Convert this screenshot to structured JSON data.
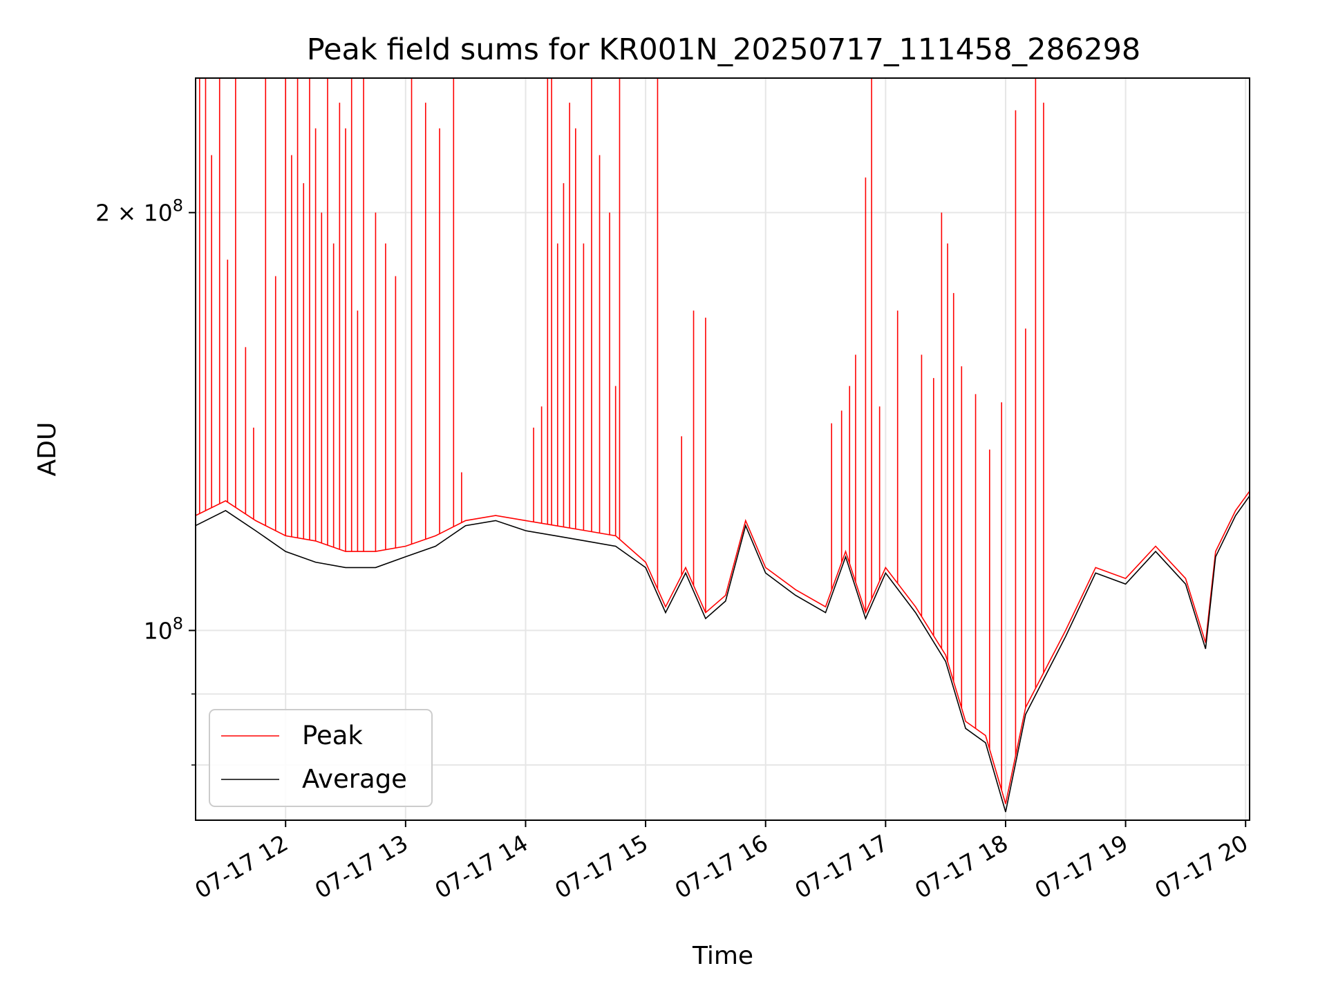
{
  "chart_data": {
    "type": "line",
    "title": "Peak field sums for KR001N_20250717_111458_286298",
    "xlabel": "Time",
    "ylabel": "ADU",
    "yscale": "log",
    "grid": true,
    "legend_position": "lower-left",
    "xlim": [
      "2025-07-17T11:15",
      "2025-07-17T20:02"
    ],
    "ylim": [
      73000000,
      250000000
    ],
    "x_ticks": [
      {
        "t": "2025-07-17T12:00",
        "label": "07-17 12"
      },
      {
        "t": "2025-07-17T13:00",
        "label": "07-17 13"
      },
      {
        "t": "2025-07-17T14:00",
        "label": "07-17 14"
      },
      {
        "t": "2025-07-17T15:00",
        "label": "07-17 15"
      },
      {
        "t": "2025-07-17T16:00",
        "label": "07-17 16"
      },
      {
        "t": "2025-07-17T17:00",
        "label": "07-17 17"
      },
      {
        "t": "2025-07-17T18:00",
        "label": "07-17 18"
      },
      {
        "t": "2025-07-17T19:00",
        "label": "07-17 19"
      },
      {
        "t": "2025-07-17T20:00",
        "label": "07-17 20"
      }
    ],
    "y_major_ticks": [
      {
        "value": 100000000,
        "base": "10",
        "exp": "8"
      },
      {
        "value": 200000000,
        "base": "2 × 10",
        "exp": "8"
      }
    ],
    "y_minor_ticks": [
      80000000,
      90000000
    ],
    "series": [
      {
        "name": "Peak",
        "color": "#ff0000",
        "base": [
          [
            "2025-07-17T11:15",
            121000000
          ],
          [
            "2025-07-17T11:30",
            124000000
          ],
          [
            "2025-07-17T11:45",
            120000000
          ],
          [
            "2025-07-17T12:00",
            117000000
          ],
          [
            "2025-07-17T12:15",
            116000000
          ],
          [
            "2025-07-17T12:30",
            114000000
          ],
          [
            "2025-07-17T12:45",
            114000000
          ],
          [
            "2025-07-17T13:00",
            115000000
          ],
          [
            "2025-07-17T13:15",
            117000000
          ],
          [
            "2025-07-17T13:30",
            120000000
          ],
          [
            "2025-07-17T13:45",
            121000000
          ],
          [
            "2025-07-17T14:00",
            120000000
          ],
          [
            "2025-07-17T14:15",
            119000000
          ],
          [
            "2025-07-17T14:30",
            118000000
          ],
          [
            "2025-07-17T14:45",
            117000000
          ],
          [
            "2025-07-17T15:00",
            112000000
          ],
          [
            "2025-07-17T15:10",
            104000000
          ],
          [
            "2025-07-17T15:20",
            111000000
          ],
          [
            "2025-07-17T15:30",
            103000000
          ],
          [
            "2025-07-17T15:40",
            106000000
          ],
          [
            "2025-07-17T15:50",
            120000000
          ],
          [
            "2025-07-17T16:00",
            111000000
          ],
          [
            "2025-07-17T16:15",
            107000000
          ],
          [
            "2025-07-17T16:30",
            104000000
          ],
          [
            "2025-07-17T16:40",
            114000000
          ],
          [
            "2025-07-17T16:50",
            103000000
          ],
          [
            "2025-07-17T17:00",
            111000000
          ],
          [
            "2025-07-17T17:15",
            104000000
          ],
          [
            "2025-07-17T17:30",
            96000000
          ],
          [
            "2025-07-17T17:40",
            86000000
          ],
          [
            "2025-07-17T17:50",
            84000000
          ],
          [
            "2025-07-17T18:00",
            75000000
          ],
          [
            "2025-07-17T18:10",
            88000000
          ],
          [
            "2025-07-17T18:30",
            100000000
          ],
          [
            "2025-07-17T18:45",
            111000000
          ],
          [
            "2025-07-17T19:00",
            109000000
          ],
          [
            "2025-07-17T19:15",
            115000000
          ],
          [
            "2025-07-17T19:30",
            109000000
          ],
          [
            "2025-07-17T19:40",
            98000000
          ],
          [
            "2025-07-17T19:45",
            114000000
          ],
          [
            "2025-07-17T19:55",
            122000000
          ],
          [
            "2025-07-17T20:02",
            126000000
          ]
        ],
        "spikes": [
          [
            "2025-07-17T11:17",
            250000000
          ],
          [
            "2025-07-17T11:20",
            250000000
          ],
          [
            "2025-07-17T11:23",
            220000000
          ],
          [
            "2025-07-17T11:27",
            250000000
          ],
          [
            "2025-07-17T11:31",
            185000000
          ],
          [
            "2025-07-17T11:35",
            250000000
          ],
          [
            "2025-07-17T11:40",
            160000000
          ],
          [
            "2025-07-17T11:44",
            140000000
          ],
          [
            "2025-07-17T11:50",
            250000000
          ],
          [
            "2025-07-17T11:55",
            180000000
          ],
          [
            "2025-07-17T12:00",
            250000000
          ],
          [
            "2025-07-17T12:03",
            220000000
          ],
          [
            "2025-07-17T12:06",
            250000000
          ],
          [
            "2025-07-17T12:09",
            210000000
          ],
          [
            "2025-07-17T12:12",
            250000000
          ],
          [
            "2025-07-17T12:15",
            230000000
          ],
          [
            "2025-07-17T12:18",
            200000000
          ],
          [
            "2025-07-17T12:21",
            250000000
          ],
          [
            "2025-07-17T12:24",
            190000000
          ],
          [
            "2025-07-17T12:27",
            240000000
          ],
          [
            "2025-07-17T12:30",
            230000000
          ],
          [
            "2025-07-17T12:33",
            250000000
          ],
          [
            "2025-07-17T12:36",
            170000000
          ],
          [
            "2025-07-17T12:39",
            250000000
          ],
          [
            "2025-07-17T12:45",
            200000000
          ],
          [
            "2025-07-17T12:50",
            190000000
          ],
          [
            "2025-07-17T12:55",
            180000000
          ],
          [
            "2025-07-17T13:03",
            250000000
          ],
          [
            "2025-07-17T13:10",
            240000000
          ],
          [
            "2025-07-17T13:17",
            230000000
          ],
          [
            "2025-07-17T13:24",
            250000000
          ],
          [
            "2025-07-17T13:28",
            130000000
          ],
          [
            "2025-07-17T14:04",
            140000000
          ],
          [
            "2025-07-17T14:08",
            145000000
          ],
          [
            "2025-07-17T14:11",
            250000000
          ],
          [
            "2025-07-17T14:13",
            250000000
          ],
          [
            "2025-07-17T14:16",
            190000000
          ],
          [
            "2025-07-17T14:19",
            210000000
          ],
          [
            "2025-07-17T14:22",
            240000000
          ],
          [
            "2025-07-17T14:25",
            230000000
          ],
          [
            "2025-07-17T14:29",
            190000000
          ],
          [
            "2025-07-17T14:33",
            250000000
          ],
          [
            "2025-07-17T14:37",
            220000000
          ],
          [
            "2025-07-17T14:42",
            200000000
          ],
          [
            "2025-07-17T14:45",
            150000000
          ],
          [
            "2025-07-17T14:47",
            250000000
          ],
          [
            "2025-07-17T15:06",
            250000000
          ],
          [
            "2025-07-17T15:18",
            138000000
          ],
          [
            "2025-07-17T15:24",
            170000000
          ],
          [
            "2025-07-17T15:30",
            168000000
          ],
          [
            "2025-07-17T16:33",
            141000000
          ],
          [
            "2025-07-17T16:38",
            144000000
          ],
          [
            "2025-07-17T16:42",
            150000000
          ],
          [
            "2025-07-17T16:45",
            158000000
          ],
          [
            "2025-07-17T16:50",
            212000000
          ],
          [
            "2025-07-17T16:53",
            250000000
          ],
          [
            "2025-07-17T16:57",
            145000000
          ],
          [
            "2025-07-17T17:06",
            170000000
          ],
          [
            "2025-07-17T17:18",
            158000000
          ],
          [
            "2025-07-17T17:24",
            152000000
          ],
          [
            "2025-07-17T17:28",
            200000000
          ],
          [
            "2025-07-17T17:31",
            190000000
          ],
          [
            "2025-07-17T17:34",
            175000000
          ],
          [
            "2025-07-17T17:38",
            155000000
          ],
          [
            "2025-07-17T17:45",
            148000000
          ],
          [
            "2025-07-17T17:52",
            135000000
          ],
          [
            "2025-07-17T17:58",
            146000000
          ],
          [
            "2025-07-17T18:05",
            237000000
          ],
          [
            "2025-07-17T18:10",
            165000000
          ],
          [
            "2025-07-17T18:15",
            250000000
          ],
          [
            "2025-07-17T18:19",
            240000000
          ]
        ]
      },
      {
        "name": "Average",
        "color": "#000000",
        "values": [
          [
            "2025-07-17T11:15",
            119000000
          ],
          [
            "2025-07-17T11:30",
            122000000
          ],
          [
            "2025-07-17T11:45",
            118000000
          ],
          [
            "2025-07-17T12:00",
            114000000
          ],
          [
            "2025-07-17T12:15",
            112000000
          ],
          [
            "2025-07-17T12:30",
            111000000
          ],
          [
            "2025-07-17T12:45",
            111000000
          ],
          [
            "2025-07-17T13:00",
            113000000
          ],
          [
            "2025-07-17T13:15",
            115000000
          ],
          [
            "2025-07-17T13:30",
            119000000
          ],
          [
            "2025-07-17T13:45",
            120000000
          ],
          [
            "2025-07-17T14:00",
            118000000
          ],
          [
            "2025-07-17T14:15",
            117000000
          ],
          [
            "2025-07-17T14:30",
            116000000
          ],
          [
            "2025-07-17T14:45",
            115000000
          ],
          [
            "2025-07-17T15:00",
            111000000
          ],
          [
            "2025-07-17T15:10",
            103000000
          ],
          [
            "2025-07-17T15:20",
            110000000
          ],
          [
            "2025-07-17T15:30",
            102000000
          ],
          [
            "2025-07-17T15:40",
            105000000
          ],
          [
            "2025-07-17T15:50",
            119000000
          ],
          [
            "2025-07-17T16:00",
            110000000
          ],
          [
            "2025-07-17T16:15",
            106000000
          ],
          [
            "2025-07-17T16:30",
            103000000
          ],
          [
            "2025-07-17T16:40",
            113000000
          ],
          [
            "2025-07-17T16:50",
            102000000
          ],
          [
            "2025-07-17T17:00",
            110000000
          ],
          [
            "2025-07-17T17:15",
            103000000
          ],
          [
            "2025-07-17T17:30",
            95000000
          ],
          [
            "2025-07-17T17:40",
            85000000
          ],
          [
            "2025-07-17T17:50",
            83000000
          ],
          [
            "2025-07-17T18:00",
            74000000
          ],
          [
            "2025-07-17T18:10",
            87000000
          ],
          [
            "2025-07-17T18:30",
            99000000
          ],
          [
            "2025-07-17T18:45",
            110000000
          ],
          [
            "2025-07-17T19:00",
            108000000
          ],
          [
            "2025-07-17T19:15",
            114000000
          ],
          [
            "2025-07-17T19:30",
            108000000
          ],
          [
            "2025-07-17T19:40",
            97000000
          ],
          [
            "2025-07-17T19:45",
            113000000
          ],
          [
            "2025-07-17T19:55",
            121000000
          ],
          [
            "2025-07-17T20:02",
            125000000
          ]
        ]
      }
    ]
  }
}
